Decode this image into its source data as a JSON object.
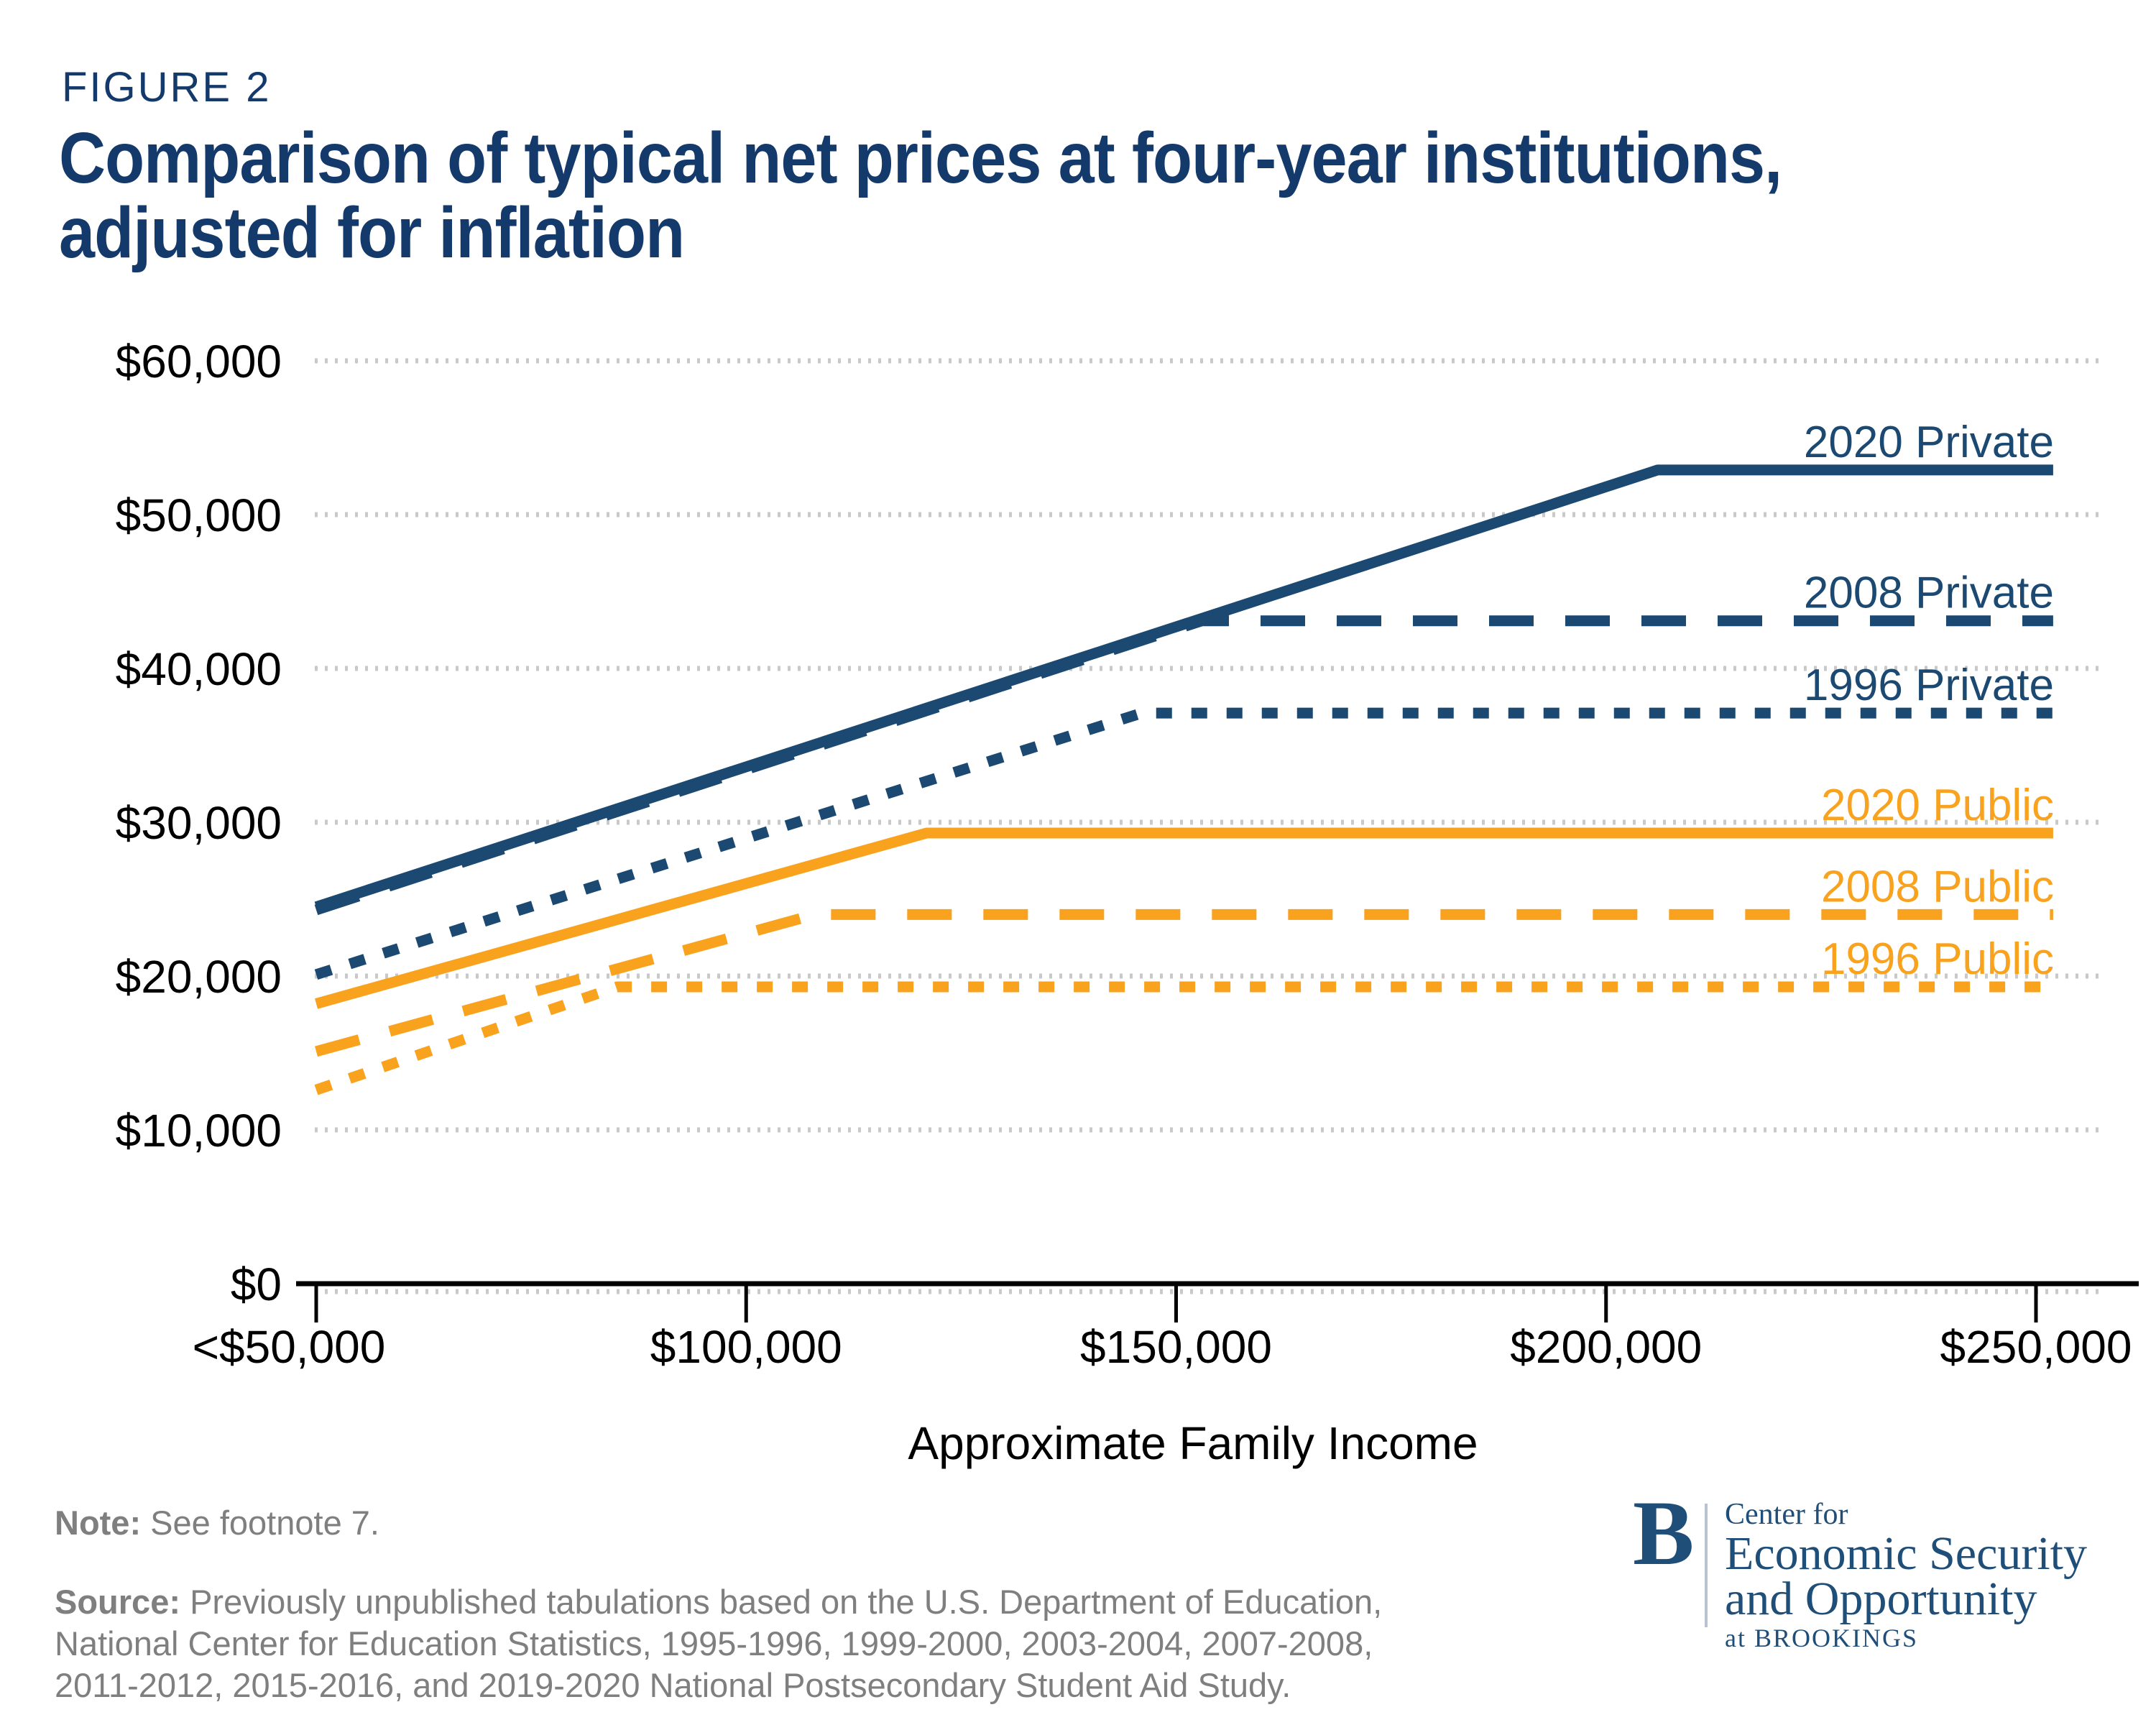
{
  "figure_label": "FIGURE 2",
  "title_line1": "Comparison of typical net prices at four-year institutions,",
  "title_line2": "adjusted for inflation",
  "note": {
    "label": "Note:",
    "text": "See footnote 7."
  },
  "source": {
    "label": "Source:",
    "lines": [
      "Previously unpublished tabulations based on the U.S. Department of Education,",
      "National Center for Education Statistics, 1995-1996, 1999-2000, 2003-2004, 2007-2008,",
      "2011-2012, 2015-2016, and 2019-2020 National Postsecondary Student Aid Study."
    ]
  },
  "logo": {
    "initial": "B",
    "line1": "Center for",
    "line2": "Economic Security",
    "line3": "and Opportunity",
    "line4": "at BROOKINGS"
  },
  "colors": {
    "navy": "#1B4971",
    "orange": "#F9A21E",
    "title_navy": "#14396B",
    "logo_navy": "#1F4E79",
    "grid": "#C9C9C9",
    "axis": "#000000",
    "note_gray": "#7F7F7F"
  },
  "chart_data": {
    "type": "line",
    "title": "Comparison of typical net prices at four-year institutions, adjusted for inflation",
    "xlabel": "Approximate Family Income",
    "ylabel": "",
    "xlim": [
      50000,
      252000
    ],
    "ylim": [
      0,
      60000
    ],
    "grid": "horizontal-dotted",
    "legend_position": "right-end-of-line labels",
    "x_ticks": [
      {
        "value": 50000,
        "label": "<$50,000"
      },
      {
        "value": 100000,
        "label": "$100,000"
      },
      {
        "value": 150000,
        "label": "$150,000"
      },
      {
        "value": 200000,
        "label": "$200,000"
      },
      {
        "value": 250000,
        "label": "$250,000"
      }
    ],
    "y_ticks": [
      {
        "value": 0,
        "label": "$0"
      },
      {
        "value": 10000,
        "label": "$10,000"
      },
      {
        "value": 20000,
        "label": "$20,000"
      },
      {
        "value": 30000,
        "label": "$30,000"
      },
      {
        "value": 40000,
        "label": "$40,000"
      },
      {
        "value": 50000,
        "label": "$50,000"
      },
      {
        "value": 60000,
        "label": "$60,000"
      }
    ],
    "series": [
      {
        "name": "2020 Private",
        "color_key": "navy",
        "line_style": "solid",
        "points": [
          [
            50000,
            24500
          ],
          [
            206000,
            52900
          ],
          [
            252000,
            52900
          ]
        ]
      },
      {
        "name": "2008 Private",
        "color_key": "navy",
        "line_style": "dashed",
        "points": [
          [
            50000,
            24300
          ],
          [
            153000,
            43100
          ],
          [
            252000,
            43100
          ]
        ]
      },
      {
        "name": "1996 Private",
        "color_key": "navy",
        "line_style": "dotted",
        "points": [
          [
            50000,
            20100
          ],
          [
            146000,
            37100
          ],
          [
            252000,
            37100
          ]
        ]
      },
      {
        "name": "2020 Public",
        "color_key": "orange",
        "line_style": "solid",
        "points": [
          [
            50000,
            18200
          ],
          [
            121000,
            29300
          ],
          [
            252000,
            29300
          ]
        ]
      },
      {
        "name": "2008 Public",
        "color_key": "orange",
        "line_style": "dashed",
        "points": [
          [
            50000,
            15100
          ],
          [
            108000,
            24000
          ],
          [
            252000,
            24000
          ]
        ]
      },
      {
        "name": "1996 Public",
        "color_key": "orange",
        "line_style": "dotted",
        "points": [
          [
            50000,
            12600
          ],
          [
            85000,
            19300
          ],
          [
            252000,
            19300
          ]
        ]
      }
    ]
  }
}
